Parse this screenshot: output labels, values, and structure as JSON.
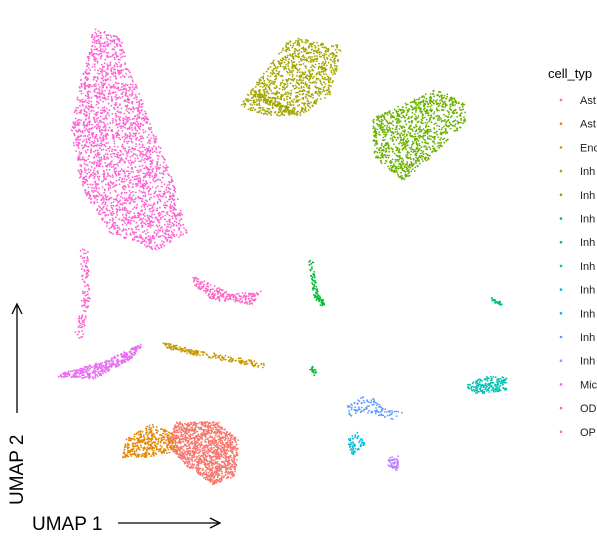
{
  "chart_data": {
    "type": "scatter",
    "xlabel": "UMAP 1",
    "ylabel": "UMAP 2",
    "legend": {
      "title": "cell_typ",
      "placement": "right",
      "entries": [
        {
          "label": "Ast",
          "color": "#F8766D"
        },
        {
          "label": "Ast",
          "color": "#E58700"
        },
        {
          "label": "Enc",
          "color": "#C99800"
        },
        {
          "label": "Inh",
          "color": "#A3A500"
        },
        {
          "label": "Inh",
          "color": "#6BB100"
        },
        {
          "label": "Inh",
          "color": "#00BA38"
        },
        {
          "label": "Inh",
          "color": "#00BF7D"
        },
        {
          "label": "Inh",
          "color": "#00C0AF"
        },
        {
          "label": "Inh",
          "color": "#00BCD8"
        },
        {
          "label": "Inh",
          "color": "#00B0F6"
        },
        {
          "label": "Inh",
          "color": "#619CFF"
        },
        {
          "label": "Inh",
          "color": "#B983FF"
        },
        {
          "label": "Mic",
          "color": "#E76BF3"
        },
        {
          "label": "OD",
          "color": "#FD61D1"
        },
        {
          "label": "OP",
          "color": "#FF67A4"
        }
      ]
    },
    "grid": false,
    "clusters": [
      {
        "color_index": 13,
        "shape": "poly",
        "points": [
          [
            -6.2,
            9.7
          ],
          [
            -5.2,
            9.3
          ],
          [
            -4.4,
            6.6
          ],
          [
            -3.2,
            3.1
          ],
          [
            -2.6,
            0.6
          ],
          [
            -3.8,
            -0.2
          ],
          [
            -5.6,
            0.6
          ],
          [
            -6.7,
            2.6
          ],
          [
            -7.1,
            5.1
          ],
          [
            -6.7,
            7.6
          ]
        ],
        "n": 2400
      },
      {
        "color_index": 13,
        "shape": "line",
        "points": [
          [
            -6.6,
            -0.2
          ],
          [
            -6.5,
            -2.2
          ],
          [
            -6.8,
            -4.0
          ]
        ],
        "width": 0.3,
        "n": 120
      },
      {
        "color_index": 12,
        "shape": "poly",
        "points": [
          [
            -7.6,
            -5.8
          ],
          [
            -6.2,
            -5.9
          ],
          [
            -4.6,
            -4.9
          ],
          [
            -4.3,
            -4.3
          ],
          [
            -5.8,
            -5.1
          ],
          [
            -7.4,
            -5.6
          ]
        ],
        "n": 380
      },
      {
        "color_index": 3,
        "shape": "poly",
        "points": [
          [
            -0.6,
            6.2
          ],
          [
            1.4,
            9.3
          ],
          [
            3.4,
            8.9
          ],
          [
            3.0,
            6.8
          ],
          [
            1.8,
            5.8
          ],
          [
            0.6,
            5.8
          ]
        ],
        "n": 1000
      },
      {
        "color_index": 3,
        "shape": "line",
        "points": [
          [
            0.0,
            6.8
          ],
          [
            1.5,
            5.9
          ]
        ],
        "width": 0.25,
        "n": 80
      },
      {
        "color_index": 4,
        "shape": "poly",
        "points": [
          [
            4.6,
            5.7
          ],
          [
            7.1,
            7.0
          ],
          [
            8.2,
            6.3
          ],
          [
            8.2,
            5.5
          ],
          [
            6.8,
            3.9
          ],
          [
            5.8,
            2.9
          ],
          [
            4.6,
            4.0
          ]
        ],
        "n": 1100
      },
      {
        "color_index": 15,
        "shape": "poly",
        "points": [
          [
            -2.4,
            -1.3
          ],
          [
            -0.9,
            -2.1
          ],
          [
            0.3,
            -2.0
          ],
          [
            -0.1,
            -2.6
          ],
          [
            -1.6,
            -2.4
          ],
          [
            -2.3,
            -1.8
          ]
        ],
        "n": 220
      },
      {
        "color_index": 2,
        "shape": "line",
        "points": [
          [
            -3.5,
            -4.4
          ],
          [
            -2.0,
            -4.8
          ],
          [
            0.4,
            -5.3
          ]
        ],
        "width": 0.22,
        "n": 200
      },
      {
        "color_index": 5,
        "shape": "line",
        "points": [
          [
            2.2,
            -0.7
          ],
          [
            2.4,
            -2.2
          ],
          [
            2.7,
            -2.6
          ]
        ],
        "width": 0.18,
        "n": 90
      },
      {
        "color_index": 5,
        "shape": "line",
        "points": [
          [
            2.2,
            -5.4
          ],
          [
            2.4,
            -5.7
          ]
        ],
        "width": 0.15,
        "n": 20
      },
      {
        "color_index": 6,
        "shape": "line",
        "points": [
          [
            9.2,
            -2.3
          ],
          [
            9.6,
            -2.6
          ]
        ],
        "width": 0.15,
        "n": 30
      },
      {
        "color_index": 7,
        "shape": "poly",
        "points": [
          [
            8.2,
            -6.2
          ],
          [
            8.9,
            -5.8
          ],
          [
            9.8,
            -5.8
          ],
          [
            9.8,
            -6.4
          ],
          [
            8.6,
            -6.6
          ]
        ],
        "n": 180
      },
      {
        "color_index": 8,
        "shape": "poly",
        "points": [
          [
            3.6,
            -8.6
          ],
          [
            4.0,
            -8.2
          ],
          [
            4.3,
            -8.8
          ],
          [
            3.8,
            -9.3
          ]
        ],
        "n": 60
      },
      {
        "color_index": 10,
        "shape": "poly",
        "points": [
          [
            3.6,
            -7.0
          ],
          [
            4.4,
            -6.6
          ],
          [
            5.1,
            -7.1
          ],
          [
            5.8,
            -7.4
          ],
          [
            5.4,
            -7.7
          ],
          [
            4.3,
            -7.4
          ],
          [
            3.7,
            -7.6
          ]
        ],
        "n": 120
      },
      {
        "color_index": 11,
        "shape": "poly",
        "points": [
          [
            5.2,
            -9.4
          ],
          [
            5.6,
            -9.3
          ],
          [
            5.6,
            -10.0
          ],
          [
            5.2,
            -9.8
          ]
        ],
        "n": 60
      },
      {
        "color_index": 0,
        "shape": "poly",
        "points": [
          [
            -3.0,
            -7.8
          ],
          [
            -1.4,
            -7.8
          ],
          [
            -0.6,
            -8.6
          ],
          [
            -0.7,
            -10.2
          ],
          [
            -1.6,
            -10.6
          ],
          [
            -2.6,
            -9.8
          ],
          [
            -3.4,
            -8.8
          ]
        ],
        "n": 1300
      },
      {
        "color_index": 1,
        "shape": "poly",
        "points": [
          [
            -5.0,
            -8.6
          ],
          [
            -4.0,
            -7.9
          ],
          [
            -3.0,
            -8.4
          ],
          [
            -3.0,
            -9.1
          ],
          [
            -4.2,
            -9.4
          ],
          [
            -5.1,
            -9.4
          ]
        ],
        "n": 380
      }
    ],
    "xlim": [
      -8.5,
      10.5
    ],
    "ylim": [
      -11.5,
      10.5
    ]
  },
  "colors": {
    "background": "#ffffff",
    "axis_arrow": "#000000"
  }
}
